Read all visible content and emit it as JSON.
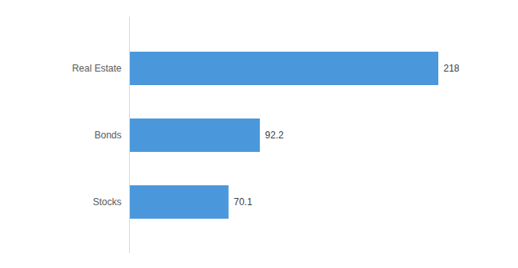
{
  "chart_data": {
    "type": "bar",
    "orientation": "horizontal",
    "categories": [
      "Real Estate",
      "Bonds",
      "Stocks"
    ],
    "values": [
      218,
      92.2,
      70.1
    ],
    "color": "#4a98db",
    "data_labels": true,
    "tick_labels": "y",
    "grid": false
  }
}
